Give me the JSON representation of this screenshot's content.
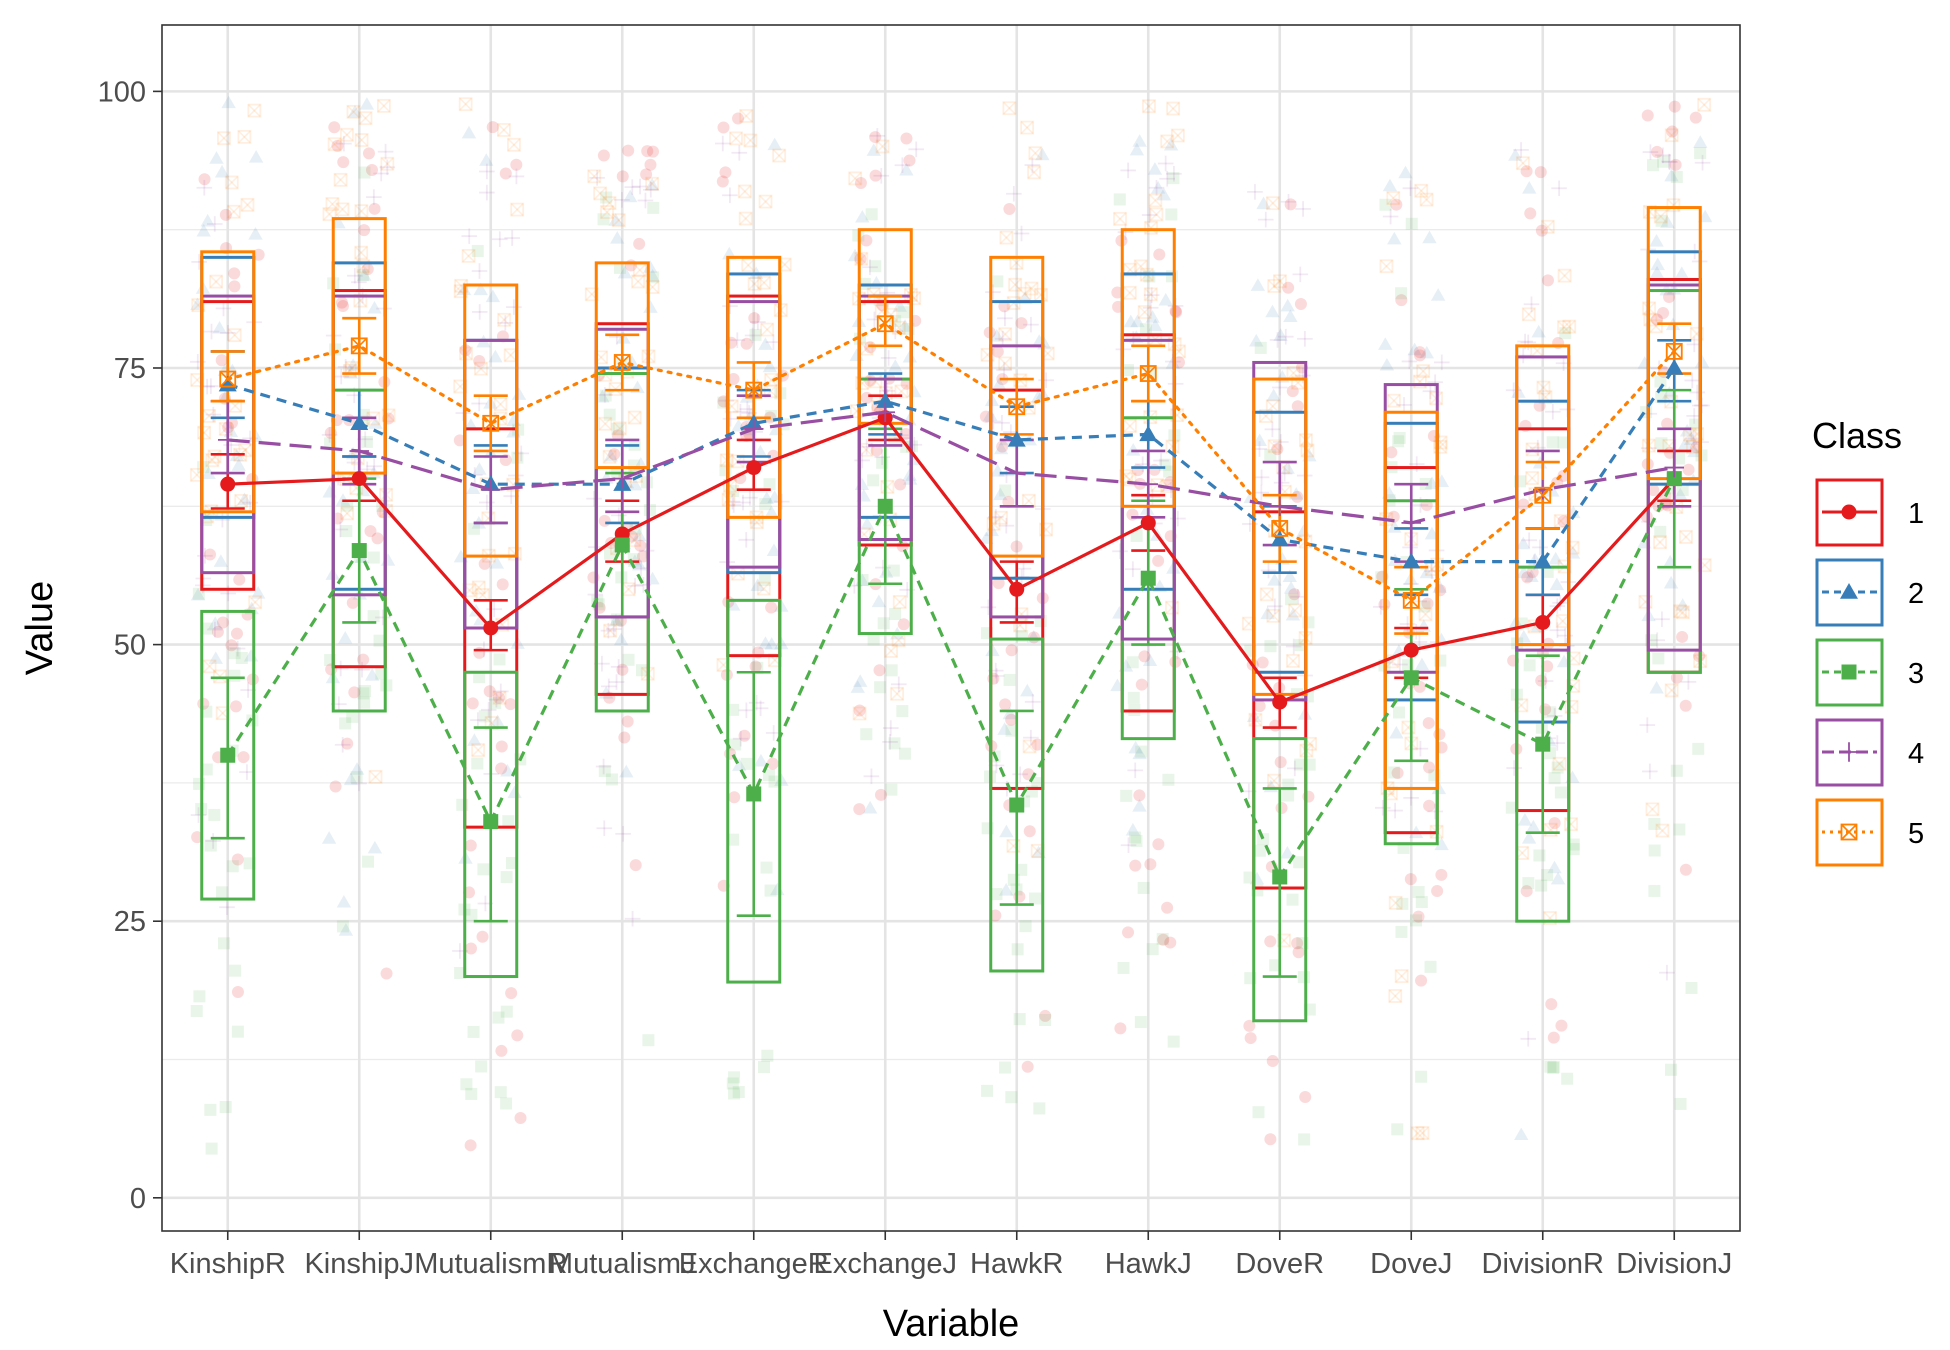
{
  "chart_data": {
    "type": "line",
    "xlabel": "Variable",
    "ylabel": "Value",
    "ylim": [
      -3,
      106
    ],
    "yticks": [
      0,
      25,
      50,
      75,
      100
    ],
    "categories": [
      "KinshipR",
      "KinshipJ",
      "MutualismR",
      "MutualismJ",
      "ExchangeR",
      "ExchangeJ",
      "HawkR",
      "HawkJ",
      "DoveR",
      "DoveJ",
      "DivisionR",
      "DivisionJ"
    ],
    "grid": true,
    "legend": {
      "title": "Class",
      "position": "right"
    },
    "series": [
      {
        "name": "1",
        "color": "#e41a1c",
        "marker": "circle",
        "linestyle": "solid",
        "means": [
          64.5,
          65,
          51.5,
          60,
          66,
          70.5,
          55,
          61,
          44.8,
          49.5,
          52,
          65
        ],
        "ci": [
          [
            62.3,
            67.2
          ],
          [
            63,
            67
          ],
          [
            49.5,
            54
          ],
          [
            57.5,
            63
          ],
          [
            64,
            68.5
          ],
          [
            68.5,
            72.5
          ],
          [
            52,
            57.5
          ],
          [
            58.5,
            63.5
          ],
          [
            42.5,
            47
          ],
          [
            47,
            51.5
          ],
          [
            49.5,
            54.5
          ],
          [
            63,
            67.5
          ]
        ],
        "box": [
          [
            55,
            81
          ],
          [
            48,
            82
          ],
          [
            33.5,
            69.5
          ],
          [
            45.5,
            79
          ],
          [
            49,
            81.5
          ],
          [
            59,
            81
          ],
          [
            37,
            73
          ],
          [
            44,
            78
          ],
          [
            28,
            62
          ],
          [
            33,
            66
          ],
          [
            35,
            69.5
          ],
          [
            47.5,
            83
          ]
        ]
      },
      {
        "name": "2",
        "color": "#377eb8",
        "marker": "triangle",
        "linestyle": "dashed",
        "means": [
          73.5,
          70,
          64.5,
          64.5,
          70,
          72,
          68.5,
          69,
          59.5,
          57.5,
          57.5,
          75
        ],
        "ci": [
          [
            70.5,
            76.5
          ],
          [
            67,
            73
          ],
          [
            61,
            68
          ],
          [
            61,
            68
          ],
          [
            67,
            73
          ],
          [
            69,
            74.5
          ],
          [
            65.5,
            71.5
          ],
          [
            66,
            72
          ],
          [
            56.5,
            62.5
          ],
          [
            54.5,
            60.5
          ],
          [
            54.5,
            60.5
          ],
          [
            72,
            77.5
          ]
        ],
        "box": [
          [
            61.5,
            85
          ],
          [
            55,
            84.5
          ],
          [
            51.5,
            77.5
          ],
          [
            52.5,
            75
          ],
          [
            56.5,
            83.5
          ],
          [
            61.5,
            82.5
          ],
          [
            56,
            81
          ],
          [
            55,
            83.5
          ],
          [
            47.5,
            71
          ],
          [
            45,
            70
          ],
          [
            43,
            72
          ],
          [
            64.5,
            85.5
          ]
        ]
      },
      {
        "name": "3",
        "color": "#4daf4a",
        "marker": "square",
        "linestyle": "dashed",
        "means": [
          40,
          58.5,
          34,
          59,
          36.5,
          62.5,
          35.5,
          56,
          29,
          47,
          41,
          65
        ],
        "ci": [
          [
            32.5,
            47
          ],
          [
            52,
            65
          ],
          [
            25,
            42.5
          ],
          [
            52.5,
            65.5
          ],
          [
            25.5,
            47.5
          ],
          [
            55.5,
            69.5
          ],
          [
            26.5,
            44
          ],
          [
            50,
            63
          ],
          [
            20,
            37
          ],
          [
            39.5,
            55
          ],
          [
            33,
            49
          ],
          [
            57,
            73
          ]
        ],
        "box": [
          [
            27,
            53
          ],
          [
            44,
            73
          ],
          [
            20,
            47.5
          ],
          [
            44,
            74.5
          ],
          [
            19.5,
            54
          ],
          [
            51,
            74
          ],
          [
            20.5,
            50.5
          ],
          [
            41.5,
            70.5
          ],
          [
            16,
            41.5
          ],
          [
            32,
            63
          ],
          [
            25,
            57
          ],
          [
            47.5,
            82
          ]
        ]
      },
      {
        "name": "4",
        "color": "#984ea3",
        "marker": "plus",
        "linestyle": "longdash",
        "means": [
          68.5,
          67.5,
          64,
          65,
          69.5,
          71,
          65.5,
          64.5,
          62.5,
          61,
          64,
          66
        ],
        "ci": [
          [
            65.5,
            72
          ],
          [
            64.5,
            70.5
          ],
          [
            61,
            67
          ],
          [
            62,
            68.5
          ],
          [
            66.5,
            72.5
          ],
          [
            68,
            74
          ],
          [
            62.5,
            68.5
          ],
          [
            61.5,
            67.5
          ],
          [
            59,
            66.5
          ],
          [
            57.5,
            64.5
          ],
          [
            60.5,
            67.5
          ],
          [
            62.5,
            69.5
          ]
        ],
        "box": [
          [
            56.5,
            81.5
          ],
          [
            54.5,
            81.5
          ],
          [
            51.5,
            77.5
          ],
          [
            52.5,
            78.5
          ],
          [
            57,
            81
          ],
          [
            59.5,
            81.5
          ],
          [
            52.5,
            77
          ],
          [
            50.5,
            77.5
          ],
          [
            45,
            75.5
          ],
          [
            47.5,
            73.5
          ],
          [
            49.5,
            76
          ],
          [
            49.5,
            82.5
          ]
        ]
      },
      {
        "name": "5",
        "color": "#ff7f00",
        "marker": "crossbox",
        "linestyle": "dotted",
        "means": [
          74,
          77,
          70,
          75.5,
          73,
          79,
          71.5,
          74.5,
          60.5,
          54,
          63.5,
          76.5
        ],
        "ci": [
          [
            72,
            76.5
          ],
          [
            74.5,
            79.5
          ],
          [
            67.5,
            72.5
          ],
          [
            73,
            78
          ],
          [
            70.5,
            75.5
          ],
          [
            77,
            81.5
          ],
          [
            69,
            74
          ],
          [
            72,
            77
          ],
          [
            57.5,
            63.5
          ],
          [
            51,
            57
          ],
          [
            60.5,
            66.5
          ],
          [
            74.5,
            79
          ]
        ],
        "box": [
          [
            62,
            85.5
          ],
          [
            65.5,
            88.5
          ],
          [
            58,
            82.5
          ],
          [
            66,
            84.5
          ],
          [
            61.5,
            85
          ],
          [
            70,
            87.5
          ],
          [
            58,
            85
          ],
          [
            62.5,
            87.5
          ],
          [
            45.5,
            74
          ],
          [
            37,
            71
          ],
          [
            50,
            77
          ],
          [
            65,
            89.5
          ]
        ]
      }
    ],
    "jitter_ranges": {
      "1": [
        [
          12,
          98
        ],
        [
          8,
          97
        ],
        [
          4,
          97
        ],
        [
          10,
          96
        ],
        [
          8,
          98
        ],
        [
          35,
          97
        ],
        [
          8,
          97
        ],
        [
          12,
          96
        ],
        [
          5,
          92
        ],
        [
          2,
          91
        ],
        [
          8,
          95
        ],
        [
          5,
          99
        ]
      ],
      "2": [
        [
          18,
          99
        ],
        [
          12,
          99
        ],
        [
          12,
          97
        ],
        [
          18,
          95
        ],
        [
          15,
          98
        ],
        [
          33,
          96
        ],
        [
          15,
          98
        ],
        [
          15,
          98
        ],
        [
          15,
          92
        ],
        [
          10,
          94
        ],
        [
          5,
          96
        ],
        [
          15,
          99
        ]
      ],
      "3": [
        [
          4,
          90
        ],
        [
          10,
          95
        ],
        [
          8,
          90
        ],
        [
          12,
          92
        ],
        [
          8,
          95
        ],
        [
          33,
          92
        ],
        [
          8,
          92
        ],
        [
          10,
          94
        ],
        [
          5,
          88
        ],
        [
          5,
          90
        ],
        [
          10,
          92
        ],
        [
          8,
          95
        ]
      ],
      "4": [
        [
          22,
          95
        ],
        [
          25,
          96
        ],
        [
          15,
          95
        ],
        [
          12,
          94
        ],
        [
          20,
          96
        ],
        [
          38,
          96
        ],
        [
          18,
          96
        ],
        [
          18,
          95
        ],
        [
          15,
          92
        ],
        [
          12,
          92
        ],
        [
          5,
          95
        ],
        [
          14,
          97
        ]
      ],
      "5": [
        [
          30,
          99
        ],
        [
          30,
          99
        ],
        [
          25,
          99
        ],
        [
          30,
          96
        ],
        [
          25,
          99
        ],
        [
          40,
          98
        ],
        [
          30,
          99
        ],
        [
          30,
          99
        ],
        [
          20,
          93
        ],
        [
          2,
          92
        ],
        [
          25,
          95
        ],
        [
          30,
          100
        ]
      ]
    }
  }
}
